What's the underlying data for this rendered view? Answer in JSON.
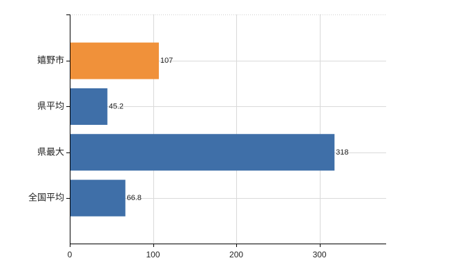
{
  "chart_data": {
    "type": "bar",
    "orientation": "horizontal",
    "categories": [
      "嬉野市",
      "県平均",
      "県最大",
      "全国平均"
    ],
    "values": [
      107,
      45.2,
      318,
      66.8
    ],
    "data_labels": [
      "107",
      "45.2",
      "318",
      "66.8"
    ],
    "bar_colors": [
      "#f0913a",
      "#3f6fa8",
      "#3f6fa8",
      "#3f6fa8"
    ],
    "xlim": [
      0,
      380
    ],
    "x_ticks": [
      0,
      100,
      200,
      300
    ],
    "x_tick_labels": [
      "0",
      "100",
      "200",
      "300"
    ],
    "grid": true,
    "title": "",
    "xlabel": "",
    "ylabel": ""
  }
}
